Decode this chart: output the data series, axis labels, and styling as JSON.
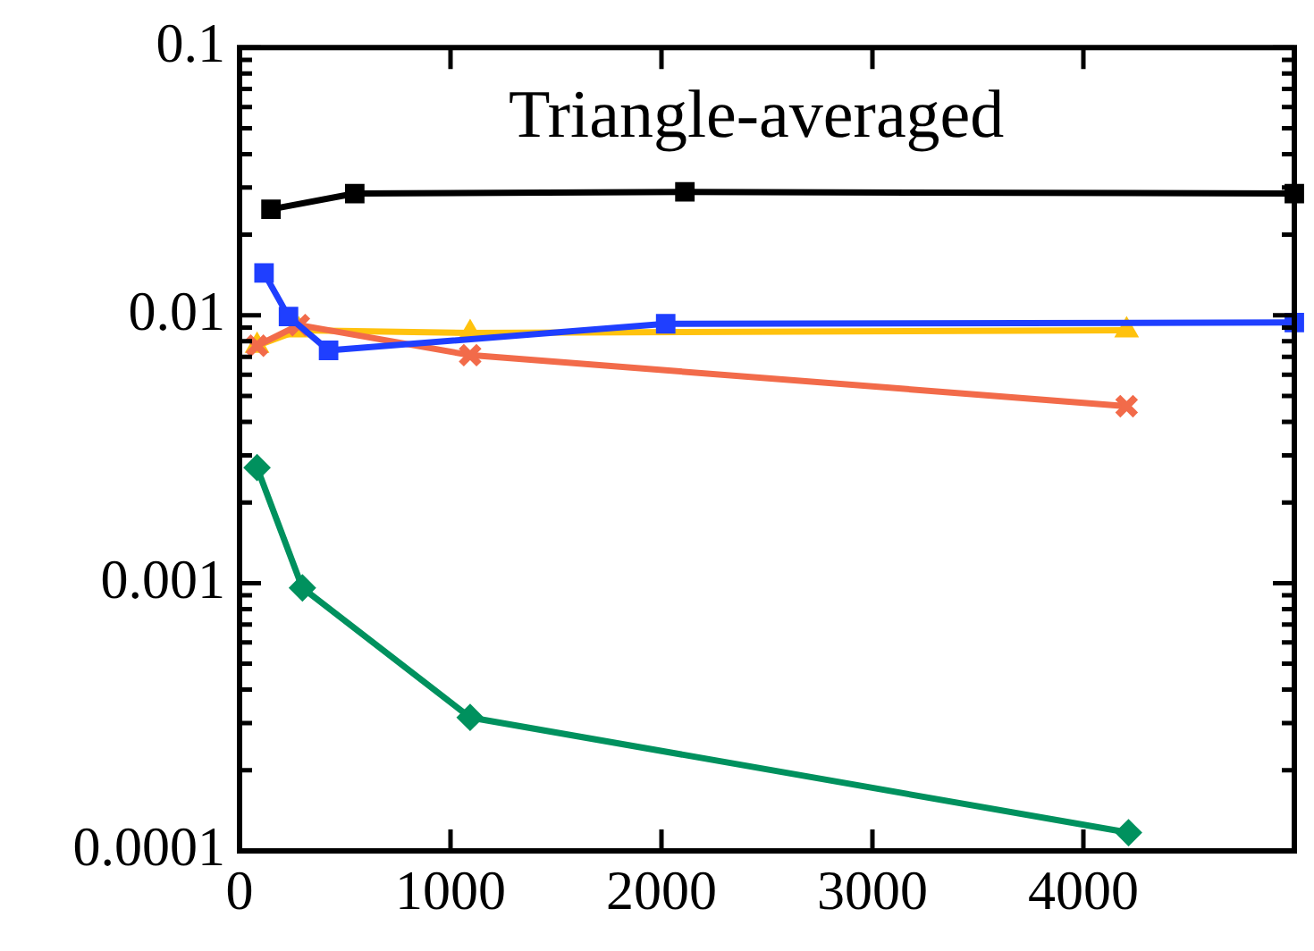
{
  "chart_data": {
    "type": "line",
    "title": "Triangle-averaged",
    "log": "y",
    "grid": false,
    "legend": false,
    "line_style": "solid",
    "xlim": [
      0,
      5000
    ],
    "xticks": [
      0,
      1000,
      2000,
      3000,
      4000
    ],
    "ylim": [
      0.0001,
      0.1
    ],
    "yticks": [
      0.0001,
      {
        "value": 0.0002,
        "label": null
      },
      {
        "value": 0.0003,
        "label": null
      },
      {
        "value": 0.0004,
        "label": null
      },
      {
        "value": 0.0005,
        "label": null
      },
      {
        "value": 0.0006,
        "label": null
      },
      {
        "value": 0.0007,
        "label": null
      },
      {
        "value": 0.0008,
        "label": null
      },
      {
        "value": 0.0009,
        "label": null
      },
      0.001,
      {
        "value": 0.002,
        "label": null
      },
      {
        "value": 0.003,
        "label": null
      },
      {
        "value": 0.004,
        "label": null
      },
      {
        "value": 0.005,
        "label": null
      },
      {
        "value": 0.006,
        "label": null
      },
      {
        "value": 0.007,
        "label": null
      },
      {
        "value": 0.008,
        "label": null
      },
      {
        "value": 0.009,
        "label": null
      },
      0.01,
      {
        "value": 0.02,
        "label": null
      },
      {
        "value": 0.03,
        "label": null
      },
      {
        "value": 0.04,
        "label": null
      },
      {
        "value": 0.05,
        "label": null
      },
      {
        "value": 0.06,
        "label": null
      },
      {
        "value": 0.07,
        "label": null
      },
      {
        "value": 0.08,
        "label": null
      },
      {
        "value": 0.09,
        "label": null
      },
      0.1
    ],
    "series": [
      {
        "color": "#000000",
        "marker": "square",
        "x": [
          149,
          546,
          2111,
          5000
        ],
        "values": [
          0.0249,
          0.0285,
          0.0289,
          0.0285
        ]
      },
      {
        "color": "#1f3fff",
        "marker": "square",
        "x": [
          116,
          232,
          422,
          2020,
          5000
        ],
        "values": [
          0.0144,
          0.0099,
          0.0074,
          0.0093,
          0.0094
        ]
      },
      {
        "color": "#f26b4a",
        "marker": "cross",
        "x": [
          83,
          281,
          1093,
          4205
        ],
        "values": [
          0.0077,
          0.0092,
          0.0071,
          0.00458
        ]
      },
      {
        "color": "#ffc20e",
        "marker": "triangle",
        "x": [
          83,
          281,
          1093,
          4205
        ],
        "values": [
          0.0077,
          0.0088,
          0.0086,
          0.0088
        ]
      },
      {
        "color": "#00915e",
        "marker": "diamond",
        "x": [
          83,
          298,
          1093,
          4214
        ],
        "values": [
          0.0027,
          0.00096,
          0.000315,
          0.000117
        ]
      }
    ]
  }
}
